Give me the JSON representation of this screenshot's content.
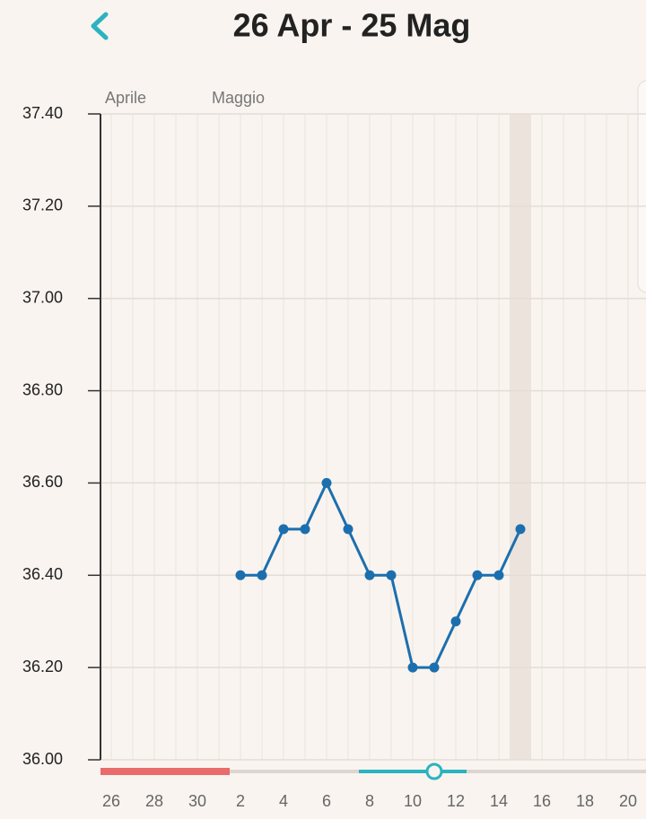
{
  "chart_data": {
    "type": "line",
    "title": "26 Apr - 25 Mag",
    "month_labels": [
      "Aprile",
      "Maggio"
    ],
    "categories": [
      "26",
      null,
      "28",
      null,
      "30",
      null,
      "2",
      null,
      "4",
      null,
      "6",
      null,
      "8",
      null,
      "10",
      null,
      "12",
      null,
      "14",
      null,
      "16",
      null,
      "18",
      null,
      "20"
    ],
    "values": [
      null,
      null,
      null,
      null,
      null,
      null,
      36.4,
      36.4,
      36.5,
      36.5,
      36.6,
      36.5,
      36.4,
      36.4,
      36.2,
      36.2,
      36.3,
      36.4,
      36.4,
      36.5,
      null,
      null,
      null,
      null,
      null
    ],
    "color": "#1c6fae",
    "ylim": [
      36.0,
      37.4
    ],
    "yticks": [
      {
        "value": 36.0,
        "label": "36.00"
      },
      {
        "value": 36.2,
        "label": "36.20"
      },
      {
        "value": 36.4,
        "label": "36.40"
      },
      {
        "value": 36.6,
        "label": "36.60"
      },
      {
        "value": 36.8,
        "label": "36.80"
      },
      {
        "value": 37.0,
        "label": "37.00"
      },
      {
        "value": 37.2,
        "label": "37.20"
      },
      {
        "value": 37.4,
        "label": "37.40"
      }
    ],
    "grid": true
  }
}
